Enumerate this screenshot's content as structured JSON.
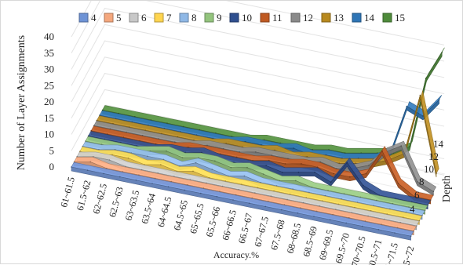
{
  "chart_data": {
    "type": "line",
    "subtype": "3d-line",
    "title": "",
    "ylabel": "Number of Layer Assignments",
    "xlabel": "Accuracy.%",
    "zlabel": "Depth",
    "ylim": [
      0,
      40
    ],
    "y_ticks": [
      "0",
      "5",
      "10",
      "15",
      "20",
      "25",
      "30",
      "35",
      "40"
    ],
    "z_ticks": [
      "4",
      "6",
      "8",
      "10",
      "12",
      "14"
    ],
    "legend_position": "top",
    "grid": true,
    "categories": [
      "61~61.5",
      "61.5~62",
      "62~62.5",
      "62.5~63",
      "63~63.5",
      "63.5~64",
      "64~64.5",
      "64.5~65",
      "65~65.5",
      "65.5~66",
      "66~66.5",
      "66.5~67",
      "67~67.5",
      "67.5~68",
      "68~68.5",
      "68.5~69",
      "69~69.5",
      "69.5~70",
      "70~70.5",
      "70.5~71",
      "71~71.5",
      "71.5~72"
    ],
    "series": [
      {
        "name": "4",
        "color": "#6e93d6",
        "values": [
          0,
          0,
          0,
          0,
          0,
          0,
          0,
          0,
          0,
          0,
          0,
          0,
          0,
          0,
          0,
          0,
          0,
          0,
          0,
          0,
          0,
          0
        ]
      },
      {
        "name": "5",
        "color": "#f4a77d",
        "values": [
          0,
          1,
          0,
          0,
          0,
          0,
          0,
          0,
          0,
          0,
          0,
          0,
          0,
          0,
          0,
          0,
          0,
          0,
          0,
          0,
          0,
          0
        ]
      },
      {
        "name": "6",
        "color": "#c8c8c8",
        "values": [
          0,
          1,
          1,
          0,
          0,
          0,
          0,
          0,
          0,
          0,
          0,
          0,
          0,
          0,
          0,
          0,
          0,
          0,
          0,
          0,
          0,
          0
        ]
      },
      {
        "name": "7",
        "color": "#ffd54f",
        "values": [
          0,
          0,
          1,
          1,
          0,
          1,
          0,
          1,
          0,
          0,
          0,
          0,
          0,
          0,
          0,
          0,
          0,
          0,
          0,
          0,
          0,
          0
        ]
      },
      {
        "name": "8",
        "color": "#8fb8e6",
        "values": [
          0,
          0,
          1,
          1,
          1,
          1,
          0,
          2,
          1,
          0,
          1,
          0,
          0,
          0,
          0,
          0,
          0,
          0,
          0,
          0,
          0,
          0
        ]
      },
      {
        "name": "9",
        "color": "#93c47d",
        "values": [
          0,
          0,
          0,
          0,
          1,
          2,
          1,
          2,
          2,
          1,
          2,
          1,
          0,
          1,
          0,
          0,
          0,
          0,
          0,
          0,
          0,
          0
        ]
      },
      {
        "name": "10",
        "color": "#2f4f8f",
        "values": [
          0,
          0,
          0,
          0,
          0,
          1,
          1,
          2,
          1,
          1,
          1,
          2,
          1,
          2,
          3,
          1,
          8,
          2,
          0,
          0,
          0,
          0
        ]
      },
      {
        "name": "11",
        "color": "#c05a22",
        "values": [
          0,
          0,
          0,
          0,
          0,
          0,
          1,
          1,
          1,
          1,
          1,
          2,
          2,
          3,
          3,
          2,
          2,
          4,
          12,
          3,
          0,
          0
        ]
      },
      {
        "name": "12",
        "color": "#8a8a8a",
        "values": [
          0,
          0,
          0,
          0,
          0,
          0,
          0,
          1,
          1,
          1,
          2,
          2,
          2,
          2,
          3,
          2,
          3,
          5,
          10,
          13,
          3,
          1
        ]
      },
      {
        "name": "13",
        "color": "#b8891e",
        "values": [
          0,
          0,
          0,
          0,
          0,
          0,
          0,
          0,
          1,
          1,
          1,
          2,
          1,
          2,
          2,
          2,
          3,
          4,
          6,
          9,
          28,
          5
        ]
      },
      {
        "name": "14",
        "color": "#2e75b6",
        "values": [
          0,
          0,
          0,
          0,
          0,
          0,
          0,
          0,
          0,
          1,
          1,
          1,
          2,
          1,
          2,
          2,
          3,
          4,
          7,
          22,
          20,
          26
        ]
      },
      {
        "name": "15",
        "color": "#4e8b3a",
        "values": [
          0,
          0,
          0,
          0,
          0,
          0,
          0,
          0,
          0,
          0,
          1,
          1,
          1,
          1,
          2,
          2,
          3,
          4,
          5,
          8,
          30,
          39
        ]
      }
    ]
  }
}
